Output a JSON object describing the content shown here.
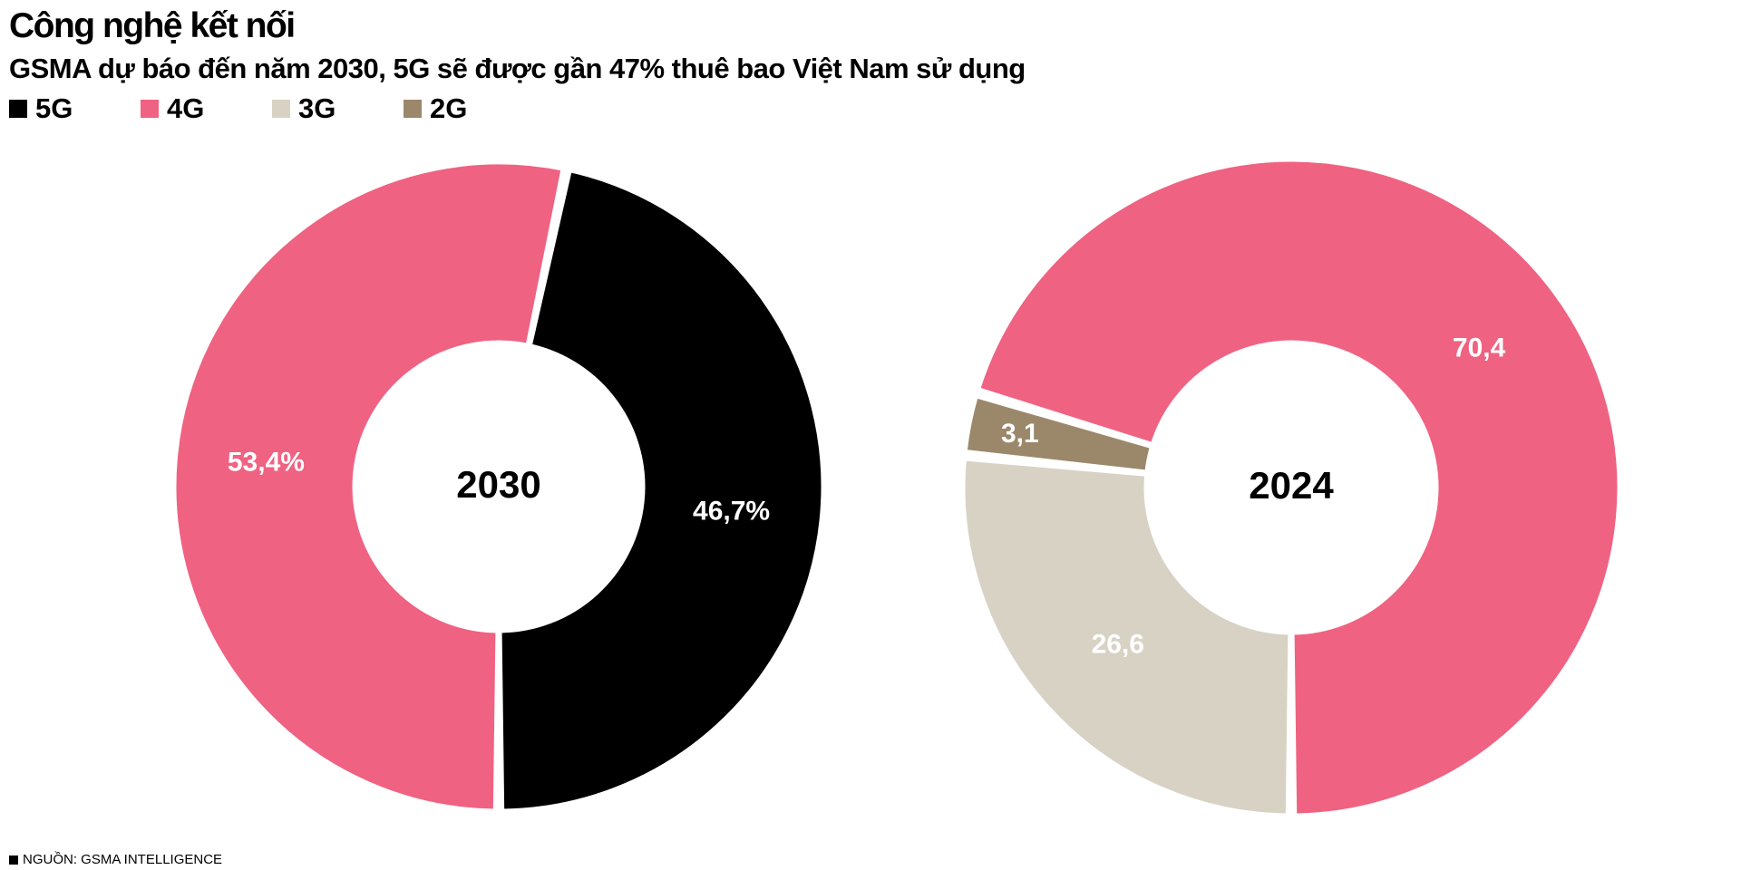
{
  "header": {
    "title": "Công nghệ kết nối",
    "subtitle": "GSMA dự báo đến năm 2030, 5G sẽ được gần 47% thuê bao Việt Nam sử dụng"
  },
  "legend": [
    {
      "label": "5G",
      "color": "#000000"
    },
    {
      "label": "4G",
      "color": "#ef6282"
    },
    {
      "label": "3G",
      "color": "#d8d2c5"
    },
    {
      "label": "2G",
      "color": "#9b886b"
    }
  ],
  "footer": {
    "source": "NGUỒN: GSMA INTELLIGENCE"
  },
  "chart_data": [
    {
      "type": "pie",
      "variant": "donut",
      "center_label": "2030",
      "slices": [
        {
          "name": "5G",
          "value": 46.7,
          "label": "46,7%",
          "color": "#000000",
          "label_color": "#ffffff"
        },
        {
          "name": "4G",
          "value": 53.4,
          "label": "53,4%",
          "color": "#ef6282",
          "label_color": "#ffffff"
        }
      ]
    },
    {
      "type": "pie",
      "variant": "donut",
      "center_label": "2024",
      "slices": [
        {
          "name": "4G",
          "value": 70.4,
          "label": "70,4",
          "color": "#ef6282",
          "label_color": "#ffffff"
        },
        {
          "name": "2G",
          "value": 3.1,
          "label": "3,1",
          "color": "#9b886b",
          "label_color": "#ffffff"
        },
        {
          "name": "3G",
          "value": 26.6,
          "label": "26,6",
          "color": "#d8d2c5",
          "label_color": "#ffffff"
        }
      ]
    }
  ]
}
